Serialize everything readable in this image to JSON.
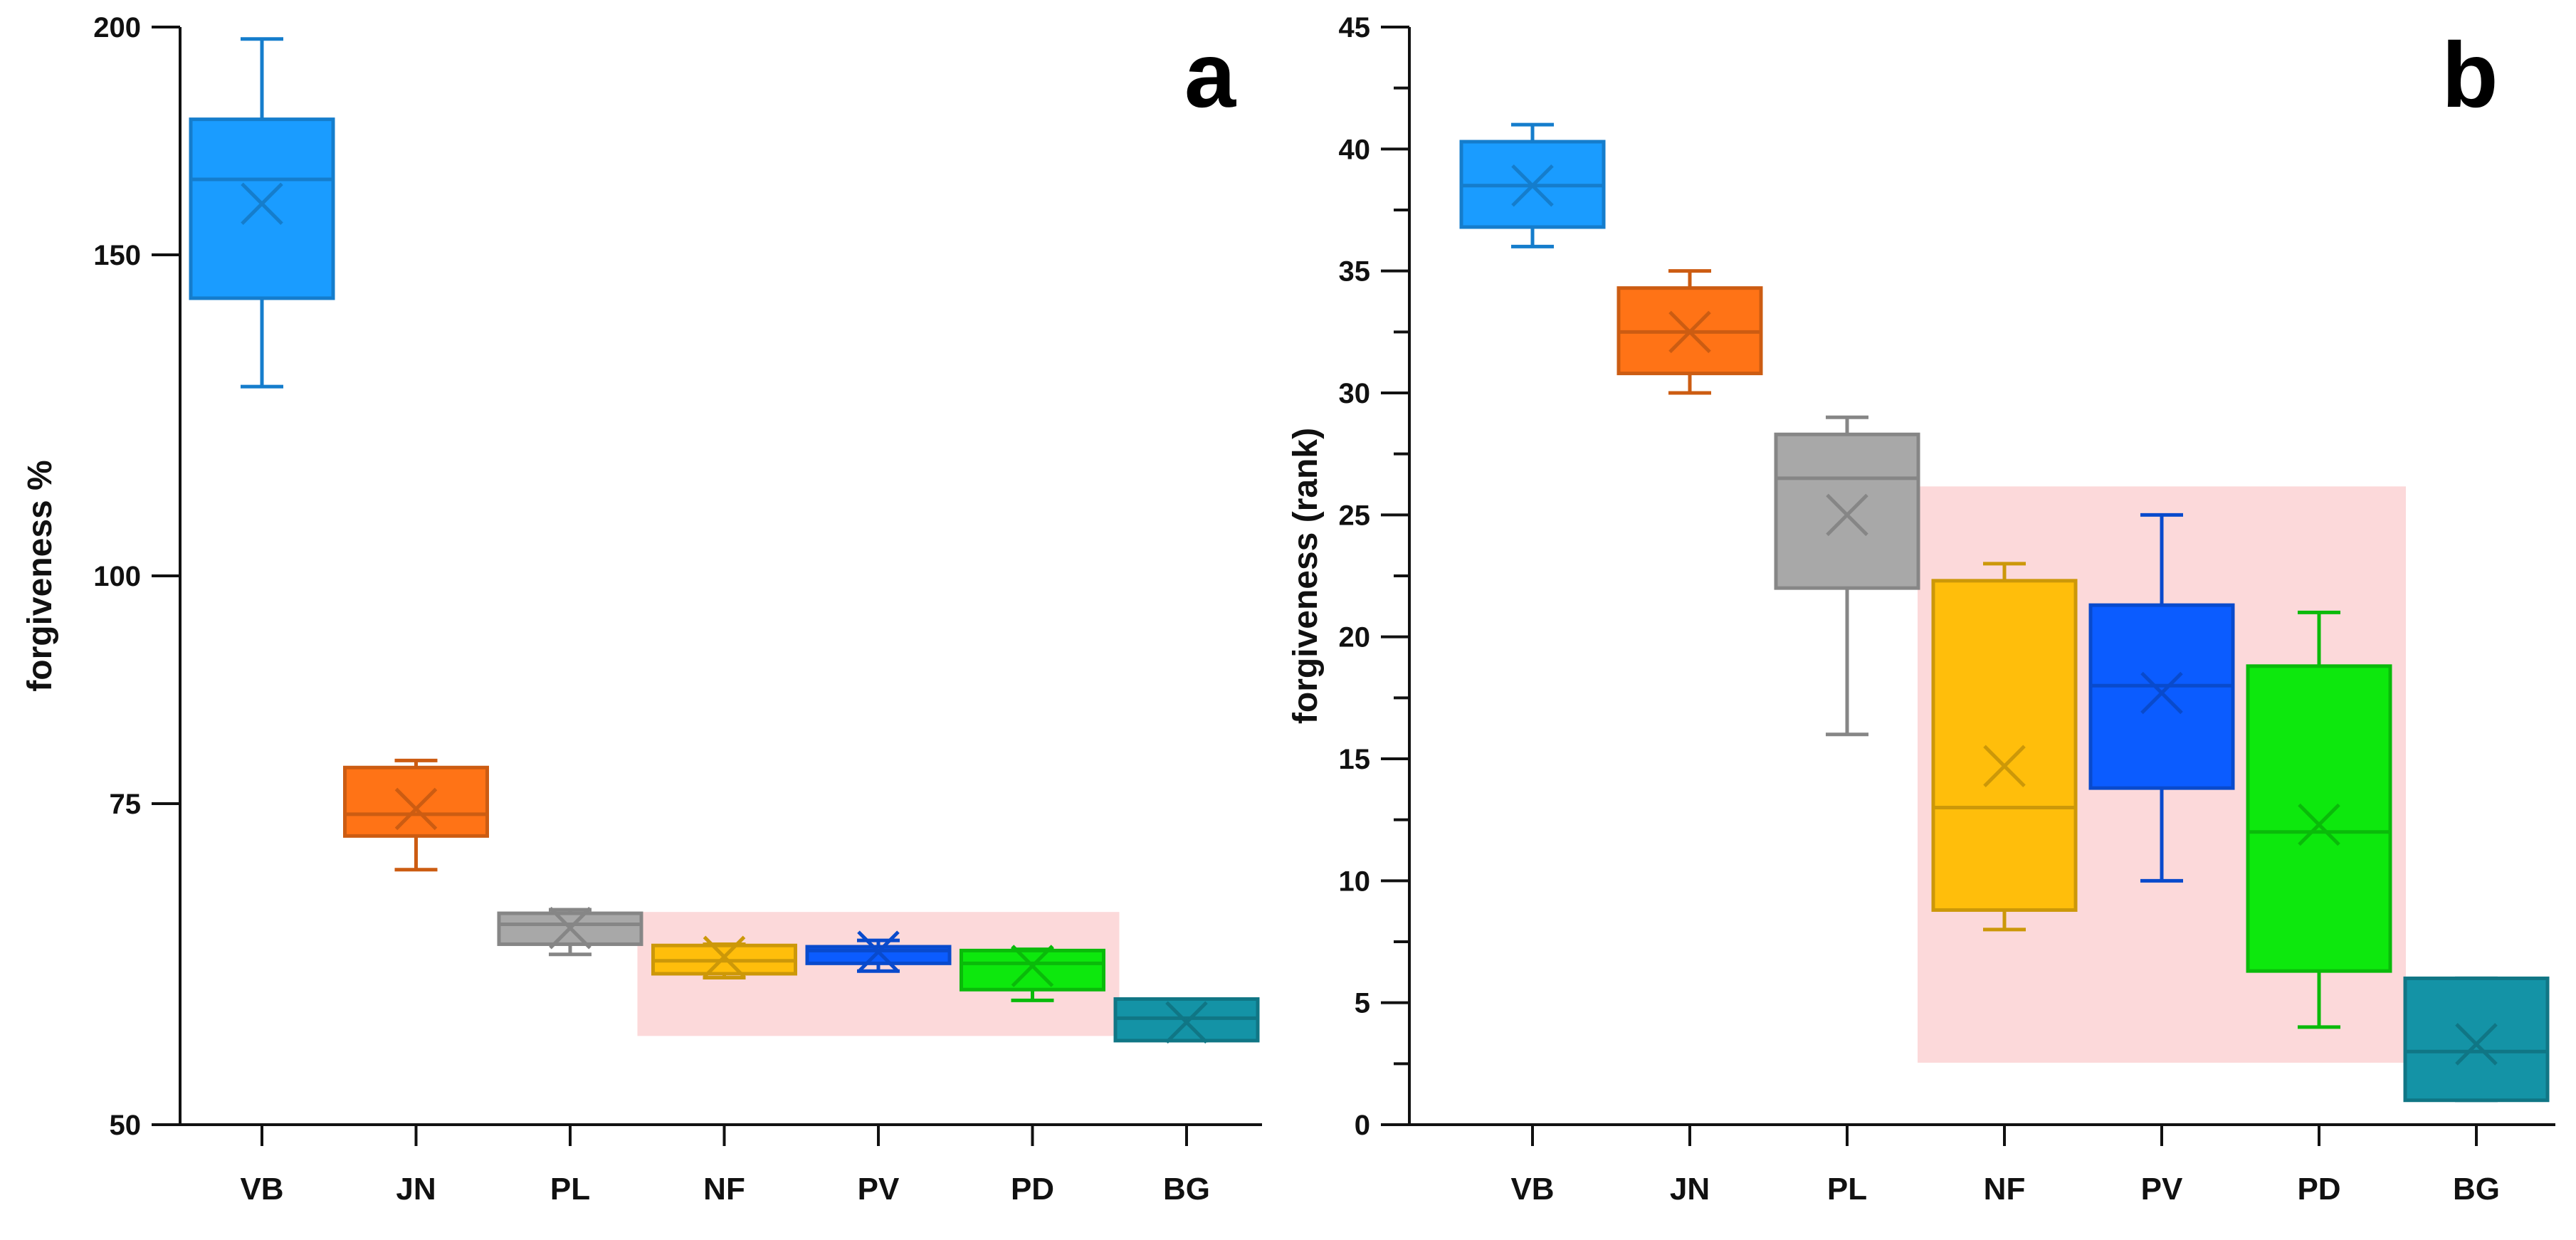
{
  "chart_data": [
    {
      "type": "box",
      "panel_label": "a",
      "ylabel": "forgiveness %",
      "y_scale": "log",
      "ylim": [
        50,
        200
      ],
      "yticks": [
        50,
        75,
        100,
        150,
        200
      ],
      "categories": [
        "VB",
        "JN",
        "PL",
        "NF",
        "PV",
        "PD",
        "BG"
      ],
      "highlight_categories": [
        "NF",
        "PV",
        "PD"
      ],
      "highlight_color": "#fcd9da",
      "boxes": [
        {
          "category": "VB",
          "color": "#1a9cff",
          "whisker_low": 127,
          "q1": 142,
          "median": 165,
          "q3": 178,
          "whisker_high": 197,
          "mean": 160
        },
        {
          "category": "JN",
          "color": "#ff7316",
          "whisker_low": 69,
          "q1": 72,
          "median": 74,
          "q3": 78.5,
          "whisker_high": 79.2,
          "mean": 74.5
        },
        {
          "category": "PL",
          "color": "#a8a8a8",
          "whisker_low": 62,
          "q1": 62.8,
          "median": 64.4,
          "q3": 65.3,
          "whisker_high": 65.6,
          "mean": 64.1
        },
        {
          "category": "NF",
          "color": "#ffbe0b",
          "whisker_low": 60.2,
          "q1": 60.5,
          "median": 61.5,
          "q3": 62.7,
          "whisker_high": 62.8,
          "mean": 61.8
        },
        {
          "category": "PV",
          "color": "#0b5cff",
          "whisker_low": 60.7,
          "q1": 61.3,
          "median": 62.3,
          "q3": 62.6,
          "whisker_high": 63.1,
          "mean": 62.2
        },
        {
          "category": "PD",
          "color": "#0de80d",
          "whisker_low": 58.5,
          "q1": 59.3,
          "median": 61.3,
          "q3": 62.3,
          "whisker_high": 62.4,
          "mean": 61.1
        },
        {
          "category": "BG",
          "color": "#1493a6",
          "whisker_low": 55.6,
          "q1": 55.6,
          "median": 57.2,
          "q3": 58.6,
          "whisker_high": 58.6,
          "mean": 56.9
        }
      ]
    },
    {
      "type": "box",
      "panel_label": "b",
      "ylabel": "forgiveness (rank)",
      "y_scale": "linear",
      "ylim": [
        0,
        45
      ],
      "yticks": [
        0,
        5,
        10,
        15,
        20,
        25,
        30,
        35,
        40,
        45
      ],
      "categories": [
        "VB",
        "JN",
        "PL",
        "NF",
        "PV",
        "PD",
        "BG"
      ],
      "highlight_categories": [
        "NF",
        "PV",
        "PD"
      ],
      "highlight_color": "#fcd9da",
      "boxes": [
        {
          "category": "VB",
          "color": "#1a9cff",
          "whisker_low": 36,
          "q1": 36.8,
          "median": 38.5,
          "q3": 40.3,
          "whisker_high": 41,
          "mean": 38.5
        },
        {
          "category": "JN",
          "color": "#ff7316",
          "whisker_low": 30,
          "q1": 30.8,
          "median": 32.5,
          "q3": 34.3,
          "whisker_high": 35,
          "mean": 32.5
        },
        {
          "category": "PL",
          "color": "#a8a8a8",
          "whisker_low": 16,
          "q1": 22,
          "median": 26.5,
          "q3": 28.3,
          "whisker_high": 29,
          "mean": 25
        },
        {
          "category": "NF",
          "color": "#ffbe0b",
          "whisker_low": 8,
          "q1": 8.8,
          "median": 13,
          "q3": 22.3,
          "whisker_high": 23,
          "mean": 14.7
        },
        {
          "category": "PV",
          "color": "#0b5cff",
          "whisker_low": 10,
          "q1": 13.8,
          "median": 18,
          "q3": 21.3,
          "whisker_high": 25,
          "mean": 17.7
        },
        {
          "category": "PD",
          "color": "#0de80d",
          "whisker_low": 4,
          "q1": 6.3,
          "median": 12,
          "q3": 18.8,
          "whisker_high": 21,
          "mean": 12.3
        },
        {
          "category": "BG",
          "color": "#1493a6",
          "whisker_low": 1,
          "q1": 1,
          "median": 3,
          "q3": 6,
          "whisker_high": 6,
          "mean": 3.3
        }
      ]
    }
  ]
}
